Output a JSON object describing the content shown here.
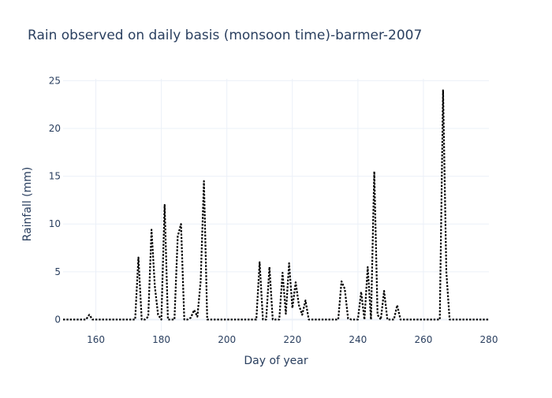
{
  "chart_data": {
    "type": "line",
    "title": "Rain observed on daily basis (monsoon time)-barmer-2007",
    "xlabel": "Day of year",
    "ylabel": "Rainfall (mm)",
    "xlim": [
      150,
      280
    ],
    "ylim": [
      -1.2,
      25.2
    ],
    "x_ticks": [
      160,
      180,
      200,
      220,
      240,
      260,
      280
    ],
    "y_ticks": [
      0,
      5,
      10,
      15,
      20,
      25
    ],
    "grid": true,
    "legend": "none",
    "line_color": "#000000",
    "line_style": "dotted",
    "series": [
      {
        "x": [
          150,
          151,
          152,
          153,
          154,
          155,
          156,
          157,
          158,
          159,
          160,
          161,
          162,
          163,
          164,
          165,
          166,
          167,
          168,
          169,
          170,
          171,
          172,
          173,
          174,
          175,
          176,
          177,
          178,
          179,
          180,
          181,
          182,
          183,
          184,
          185,
          186,
          187,
          188,
          189,
          190,
          191,
          192,
          193,
          194,
          195,
          196,
          197,
          198,
          199,
          200,
          201,
          202,
          203,
          204,
          205,
          206,
          207,
          208,
          209,
          210,
          211,
          212,
          213,
          214,
          215,
          216,
          217,
          218,
          219,
          220,
          221,
          222,
          223,
          224,
          225,
          226,
          227,
          228,
          229,
          230,
          231,
          232,
          233,
          234,
          235,
          236,
          237,
          238,
          239,
          240,
          241,
          242,
          243,
          244,
          245,
          246,
          247,
          248,
          249,
          250,
          251,
          252,
          253,
          254,
          255,
          256,
          257,
          258,
          259,
          260,
          261,
          262,
          263,
          264,
          265,
          266,
          267,
          268,
          269,
          270,
          271,
          272,
          273,
          274,
          275,
          276,
          277,
          278,
          279,
          280
        ],
        "y": [
          0,
          0,
          0,
          0,
          0,
          0,
          0,
          0,
          0.5,
          0,
          0,
          0,
          0,
          0,
          0,
          0,
          0,
          0,
          0,
          0,
          0,
          0,
          0,
          6.5,
          0,
          0,
          0.3,
          9.4,
          3.5,
          0.5,
          0,
          12,
          0,
          0,
          0,
          8.7,
          10,
          0,
          0,
          0.2,
          1,
          0.3,
          4,
          14.5,
          0,
          0,
          0,
          0,
          0,
          0,
          0,
          0,
          0,
          0,
          0,
          0,
          0,
          0,
          0,
          0,
          6,
          0,
          0,
          5.5,
          0,
          0,
          0,
          4.9,
          0.6,
          5.9,
          1.2,
          3.9,
          1.5,
          0.5,
          2,
          0,
          0,
          0,
          0,
          0,
          0,
          0,
          0,
          0,
          0,
          4,
          3.2,
          0.1,
          0,
          0,
          0,
          2.9,
          0,
          5.5,
          0,
          15.5,
          0.5,
          0,
          3,
          0,
          0,
          0,
          1.5,
          0,
          0,
          0,
          0,
          0,
          0,
          0,
          0,
          0,
          0,
          0,
          0,
          0,
          24,
          5,
          0,
          0,
          0,
          0,
          0,
          0,
          0,
          0,
          0,
          0,
          0,
          0,
          0
        ]
      }
    ]
  }
}
